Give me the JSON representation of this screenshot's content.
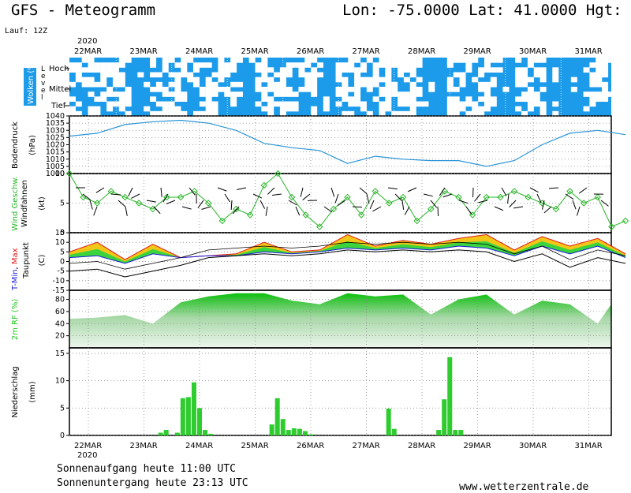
{
  "header": {
    "model_title": "GFS  -  Meteogramm",
    "coords": "Lon: -75.0000  Lat: 41.0000  Hgt:",
    "run": "Lauf: 12Z",
    "year": "2020"
  },
  "footer": {
    "sunrise": "Sonnenaufgang heute 11:00 UTC",
    "sunset": "Sonnenuntergang heute 23:13 UTC",
    "website": "www.wetterzentrale.de"
  },
  "dates": [
    "22MAR",
    "23MAR",
    "24MAR",
    "25MAR",
    "26MAR",
    "27MAR",
    "28MAR",
    "29MAR",
    "30MAR",
    "31MAR"
  ],
  "colors": {
    "cloud": "#1b9bea",
    "wind": "#27b427",
    "tmin": "#1818e0",
    "tmax": "#e01818",
    "rh": "#1ec81e",
    "precip": "#2ecc2e",
    "pressure": "#2a95d8"
  },
  "chart_data": [
    {
      "type": "heatmap",
      "name": "Wolken (%)",
      "ylabel": "Level",
      "levels": [
        "Hoch",
        "Mittel",
        "Tief"
      ]
    },
    {
      "type": "line",
      "ylabel": "Bodendruck (hPa)",
      "ylim": [
        1000,
        1040
      ],
      "yticks": [
        1000,
        1005,
        1010,
        1015,
        1020,
        1025,
        1030,
        1035,
        1040
      ],
      "x": [
        0,
        0.5,
        1,
        1.5,
        2,
        2.5,
        3,
        3.5,
        4,
        4.5,
        5,
        5.5,
        6,
        6.5,
        7,
        7.5,
        8,
        8.5,
        9,
        9.5,
        10
      ],
      "values": [
        1026,
        1028,
        1034,
        1036,
        1037,
        1035,
        1030,
        1021,
        1018,
        1016,
        1007,
        1012,
        1010,
        1009,
        1009,
        1005,
        1009,
        1020,
        1028,
        1030,
        1027
      ]
    },
    {
      "type": "line",
      "ylabel": "Wind Geschw. (kt)",
      "series_label": "Windfahnen",
      "ylim": [
        0,
        10
      ],
      "yticks": [
        0,
        5,
        10
      ],
      "x": [
        0,
        0.25,
        0.5,
        0.75,
        1,
        1.25,
        1.5,
        1.75,
        2,
        2.25,
        2.5,
        2.75,
        3,
        3.25,
        3.5,
        3.75,
        4,
        4.25,
        4.5,
        4.75,
        5,
        5.25,
        5.5,
        5.75,
        6,
        6.25,
        6.5,
        6.75,
        7,
        7.25,
        7.5,
        7.75,
        8,
        8.25,
        8.5,
        8.75,
        9,
        9.25,
        9.5,
        9.75,
        10
      ],
      "values": [
        10,
        6,
        5,
        7,
        6,
        5,
        4,
        6,
        6,
        7,
        5,
        2,
        4,
        3,
        8,
        10,
        6,
        3,
        1,
        4,
        6,
        3,
        7,
        5,
        6,
        2,
        4,
        7,
        6,
        3,
        6,
        6,
        7,
        6,
        5,
        4,
        7,
        5,
        6,
        1,
        2
      ]
    },
    {
      "type": "area",
      "ylabel": "T-Min, Max (C)",
      "series_label": "Taupunkt",
      "ylim": [
        -15,
        15
      ],
      "yticks": [
        -15,
        -10,
        -5,
        0,
        5,
        10,
        15
      ],
      "x": [
        0,
        0.5,
        1,
        1.5,
        2,
        2.5,
        3,
        3.5,
        4,
        4.5,
        5,
        5.5,
        6,
        6.5,
        7,
        7.5,
        8,
        8.5,
        9,
        9.5,
        10
      ],
      "series": [
        {
          "name": "T-Max",
          "values": [
            5,
            10,
            1,
            9,
            2,
            3,
            4,
            10,
            5,
            6,
            14,
            8,
            11,
            9,
            12,
            14,
            6,
            13,
            8,
            12,
            4
          ]
        },
        {
          "name": "T-Min",
          "values": [
            2,
            3,
            -1,
            4,
            2,
            3,
            3,
            5,
            4,
            5,
            7,
            6,
            7,
            6,
            8,
            7,
            3,
            8,
            4,
            8,
            2
          ]
        },
        {
          "name": "Taupunkt",
          "values": [
            -5,
            -4,
            -8,
            -5,
            -2,
            2,
            3,
            4,
            3,
            4,
            6,
            5,
            6,
            5,
            6,
            5,
            0,
            4,
            -3,
            2,
            -1
          ]
        }
      ]
    },
    {
      "type": "area",
      "ylabel": "2m RF (%)",
      "ylim": [
        0,
        95
      ],
      "yticks": [
        20,
        40,
        60,
        80
      ],
      "x": [
        0,
        0.5,
        1,
        1.5,
        2,
        2.5,
        3,
        3.5,
        4,
        4.5,
        5,
        5.5,
        6,
        6.5,
        7,
        7.5,
        8,
        8.5,
        9,
        9.5,
        10
      ],
      "values": [
        48,
        50,
        54,
        40,
        75,
        85,
        90,
        90,
        78,
        72,
        90,
        85,
        88,
        55,
        80,
        88,
        55,
        78,
        72,
        40,
        72
      ]
    },
    {
      "type": "bar",
      "ylabel": "Niederschlag (mm)",
      "ylim": [
        0,
        16
      ],
      "yticks": [
        0,
        5,
        10,
        15
      ],
      "x": [
        1.3,
        1.4,
        1.6,
        1.7,
        1.8,
        1.9,
        2.0,
        2.1,
        2.2,
        3.3,
        3.4,
        3.5,
        3.6,
        3.7,
        3.8,
        3.9,
        4.0,
        5.4,
        5.5,
        6.3,
        6.4,
        6.5,
        6.6,
        6.7
      ],
      "values": [
        0.5,
        1,
        0.5,
        6.8,
        7,
        9.7,
        5,
        1,
        0.3,
        2,
        6.8,
        3,
        1,
        1.3,
        1.2,
        0.8,
        0.2,
        4.9,
        1.2,
        1,
        6.6,
        14.3,
        1,
        1
      ]
    }
  ]
}
